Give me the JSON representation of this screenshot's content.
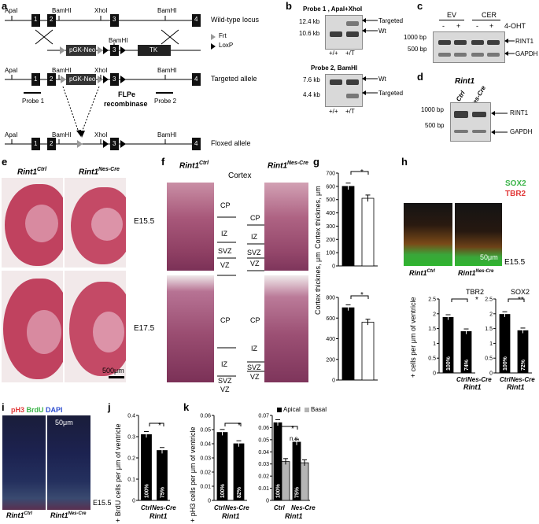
{
  "panels": {
    "a": {
      "label": "a",
      "wildtype_locus": "Wild-type locus",
      "targeted_allele": "Targeted allele",
      "floxed_allele": "Floxed allele",
      "apai": "ApaI",
      "bamhi": "BamHI",
      "xhoi": "XhoI",
      "pgk_neo": "pGK-Neo",
      "tk": "TK",
      "frt": "Frt",
      "loxp": "LoxP",
      "probe1": "Probe 1",
      "probe2": "Probe 2",
      "flpe": "FLPe",
      "recombinase": "recombinase",
      "exons": [
        "1",
        "2",
        "3",
        "4"
      ]
    },
    "b": {
      "label": "b",
      "probe1_title": "Probe 1 , ApaI+XhoI",
      "probe2_title": "Probe 2, BamHI",
      "size_12": "12.4 kb",
      "size_10": "10.6 kb",
      "size_7": "7.6 kb",
      "size_4": "4.4 kb",
      "targeted": "Targeted",
      "wt": "Wt",
      "wt2": "Wt",
      "targeted2": "Targeted",
      "lane_pp": "+/+",
      "lane_pt": "+/T",
      "lane_pp2": "+/+",
      "lane_pt2": "+/T"
    },
    "c": {
      "label": "c",
      "ev": "EV",
      "cer": "CER",
      "ohtlabel": "4-OHT",
      "lanes": [
        "-",
        "+",
        "-",
        "+"
      ],
      "bp1000": "1000 bp",
      "bp500": "500 bp",
      "rint1": "RINT1",
      "gapdh": "GAPDH"
    },
    "d": {
      "label": "d",
      "title": "Rint1",
      "ctrl": "Ctrl",
      "nescre": "Nes-Cre",
      "bp1000": "1000 bp",
      "bp500": "500 bp",
      "rint1": "RINT1",
      "gapdh": "GAPDH"
    },
    "e": {
      "label": "e",
      "ctrl_title": "Rint1",
      "ctrl_sup": "Ctrl",
      "cre_title": "Rint1",
      "cre_sup": "Nes-Cre",
      "e155": "E15.5",
      "e175": "E17.5",
      "scale": "500μm"
    },
    "f": {
      "label": "f",
      "ctrl_title": "Rint1",
      "ctrl_sup": "Ctrl",
      "cre_title": "Rint1",
      "cre_sup": "Nes-Cre",
      "cortex": "Cortex",
      "zones_top_ctrl": [
        "CP",
        "IZ",
        "SVZ",
        "VZ"
      ],
      "zones_top_cre": [
        "CP",
        "IZ",
        "SVZ",
        "VZ"
      ],
      "zones_bot_ctrl": [
        "CP",
        "IZ",
        "SVZ",
        "VZ"
      ],
      "zones_bot_cre": [
        "CP",
        "IZ",
        "SVZ",
        "VZ"
      ]
    },
    "g": {
      "label": "g",
      "ylabel": "Cortex thicknes, μm",
      "sig1": "*",
      "sig2": "*"
    },
    "h": {
      "label": "h",
      "sox2": "SOX2",
      "tbr2": "TBR2",
      "scale": "50μm",
      "stage": "E15.5",
      "ctrl_title": "Rint1",
      "ctrl_sup": "Ctrl",
      "cre_title": "Rint1",
      "cre_sup": "Nes-Cre",
      "ylabel": "+ cells per μm of ventricle",
      "tbr2_title": "TBR2",
      "sox2_title": "SOX2",
      "sig_tbr2": "*",
      "sig_sox2": "**",
      "ctrl_x": "Ctrl",
      "nes_x": "Nes-Cre",
      "rint_x": "Rint1",
      "ctrl_x2": "Ctrl",
      "nes_x2": "Nes-Cre",
      "rint_x2": "Rint1"
    },
    "i": {
      "label": "i",
      "ph3": "pH3",
      "brdu": "BrdU",
      "dapi": "DAPI",
      "scale": "50μm",
      "stage": "E15.5",
      "ctrl_title": "Rint1",
      "ctrl_sup": "Ctrl",
      "cre_title": "Rint1",
      "cre_sup": "Nes-Cre"
    },
    "j": {
      "label": "j",
      "ylabel": "+ BrdU cells per μm of ventricle",
      "sig": "*",
      "ctrl_x": "Ctrl",
      "nes_x": "Nes-Cre",
      "rint_x": "Rint1"
    },
    "k": {
      "label": "k",
      "ylabel": "+ pH3 cells per μm of ventricle",
      "sig": "*",
      "sig2": "*",
      "ns": "n.s.",
      "apical": "Apical",
      "basal": "Basal",
      "ctrl_x": "Ctrl",
      "nes_x": "Nes-Cre",
      "rint_x": "Rint1",
      "ctrl_x2": "Ctrl",
      "nes_x2": "Nes-Cre",
      "rint_x2": "Rint1"
    }
  },
  "chart_data": [
    {
      "type": "bar",
      "id": "g_top",
      "categories": [
        "Rint1 Ctrl",
        "Rint1 Nes-Cre"
      ],
      "values": [
        600,
        510
      ],
      "ylabel": "Cortex thicknes, μm",
      "ylim": [
        0,
        700
      ],
      "yticks": [
        "0",
        "100",
        "200",
        "300",
        "400",
        "500",
        "600",
        "700"
      ]
    },
    {
      "type": "bar",
      "id": "g_bottom",
      "categories": [
        "Rint1 Ctrl",
        "Rint1 Nes-Cre"
      ],
      "values": [
        700,
        560
      ],
      "ylabel": "Cortex thicknes, μm",
      "ylim": [
        0,
        800
      ],
      "yticks": [
        "0",
        "200",
        "400",
        "600",
        "800"
      ]
    },
    {
      "type": "bar",
      "id": "h_tbr2",
      "title": "TBR2",
      "categories": [
        "Ctrl",
        "Nes-Cre"
      ],
      "values": [
        1.88,
        1.4
      ],
      "bar_labels": [
        "100%",
        "74%"
      ],
      "ylim": [
        0,
        2.5
      ],
      "yticks": [
        "0",
        "0.5",
        "1",
        "1.5",
        "2",
        "2.5"
      ]
    },
    {
      "type": "bar",
      "id": "h_sox2",
      "title": "SOX2",
      "categories": [
        "Ctrl",
        "Nes-Cre"
      ],
      "values": [
        1.98,
        1.43
      ],
      "bar_labels": [
        "100%",
        "72%"
      ],
      "ylim": [
        0,
        2.5
      ],
      "yticks": [
        "0",
        "0.5",
        "1",
        "1.5",
        "2",
        "2.5"
      ]
    },
    {
      "type": "bar",
      "id": "j",
      "categories": [
        "Ctrl",
        "Nes-Cre"
      ],
      "values": [
        0.31,
        0.235
      ],
      "bar_labels": [
        "100%",
        "75%"
      ],
      "ylim": [
        0,
        0.4
      ],
      "yticks": [
        "0",
        "0.1",
        "0.2",
        "0.3",
        "0.4"
      ]
    },
    {
      "type": "bar",
      "id": "k_total",
      "categories": [
        "Ctrl",
        "Nes-Cre"
      ],
      "values": [
        0.048,
        0.04
      ],
      "bar_labels": [
        "100%",
        "82%"
      ],
      "ylim": [
        0,
        0.06
      ],
      "yticks": [
        "0",
        "0.01",
        "0.02",
        "0.03",
        "0.04",
        "0.05",
        "0.06"
      ]
    },
    {
      "type": "bar",
      "id": "k_apical_basal",
      "categories": [
        "Ctrl",
        "Nes-Cre"
      ],
      "series": [
        {
          "name": "Apical",
          "values": [
            0.064,
            0.048
          ],
          "bar_labels": [
            "100%",
            "75%"
          ]
        },
        {
          "name": "Basal",
          "values": [
            0.032,
            0.031
          ]
        }
      ],
      "ylim": [
        0,
        0.07
      ],
      "yticks": [
        "0",
        "0.01",
        "0.02",
        "0.03",
        "0.04",
        "0.05",
        "0.06",
        "0.07"
      ]
    }
  ]
}
